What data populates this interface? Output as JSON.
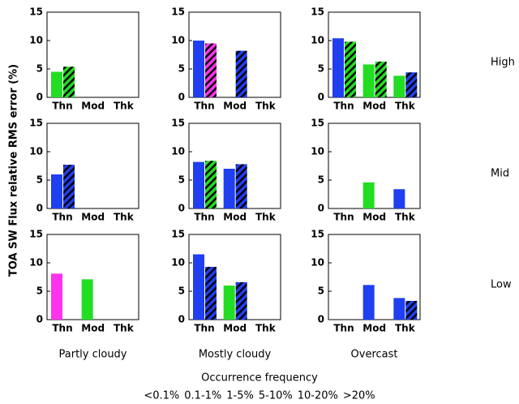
{
  "ylabel": "TOA SW Flux relative RMS error (%)",
  "row_labels": [
    "High",
    "Mid",
    "Low"
  ],
  "column_labels": [
    "Partly cloudy",
    "Mostly cloudy",
    "Overcast"
  ],
  "legend": {
    "title": "Occurrence frequency",
    "items": [
      {
        "label": "<0.1%",
        "color": "#999999"
      },
      {
        "label": "0.1-1%",
        "color": "#1f3ff0"
      },
      {
        "label": "1-5%",
        "color": "#22dd22"
      },
      {
        "label": "5-10%",
        "color": "#ff33ee"
      },
      {
        "label": "10-20%",
        "color": "#ff2020"
      },
      {
        "label": ">20%",
        "color": "#000000"
      }
    ]
  },
  "chart_data": [
    {
      "type": "bar",
      "categories": [
        "Thn",
        "Mod",
        "Thk"
      ],
      "ylim": [
        0,
        15
      ],
      "yticks": [
        0,
        5,
        10,
        15
      ],
      "series": [
        {
          "hatched": false,
          "values": [
            4.5,
            0,
            0
          ],
          "colors": [
            "#22dd22",
            "#999999",
            "#999999"
          ]
        },
        {
          "hatched": true,
          "values": [
            5.4,
            0,
            0
          ],
          "colors": [
            "#22dd22",
            "#999999",
            "#999999"
          ]
        }
      ]
    },
    {
      "type": "bar",
      "categories": [
        "Thn",
        "Mod",
        "Thk"
      ],
      "ylim": [
        0,
        15
      ],
      "yticks": [
        0,
        5,
        10,
        15
      ],
      "series": [
        {
          "hatched": false,
          "values": [
            10.0,
            0,
            0
          ],
          "colors": [
            "#1f3ff0",
            "#999999",
            "#999999"
          ]
        },
        {
          "hatched": true,
          "values": [
            9.5,
            8.2,
            0
          ],
          "colors": [
            "#ff33ee",
            "#1f3ff0",
            "#999999"
          ]
        }
      ]
    },
    {
      "type": "bar",
      "categories": [
        "Thn",
        "Mod",
        "Thk"
      ],
      "ylim": [
        0,
        15
      ],
      "yticks": [
        0,
        5,
        10,
        15
      ],
      "series": [
        {
          "hatched": false,
          "values": [
            10.4,
            5.8,
            3.8
          ],
          "colors": [
            "#1f3ff0",
            "#22dd22",
            "#22dd22"
          ]
        },
        {
          "hatched": true,
          "values": [
            9.8,
            6.3,
            4.4
          ],
          "colors": [
            "#22dd22",
            "#22dd22",
            "#1f3ff0"
          ]
        }
      ]
    },
    {
      "type": "bar",
      "categories": [
        "Thn",
        "Mod",
        "Thk"
      ],
      "ylim": [
        0,
        15
      ],
      "yticks": [
        0,
        5,
        10,
        15
      ],
      "series": [
        {
          "hatched": false,
          "values": [
            6.0,
            0,
            0
          ],
          "colors": [
            "#1f3ff0",
            "#999999",
            "#999999"
          ]
        },
        {
          "hatched": true,
          "values": [
            7.7,
            0,
            0
          ],
          "colors": [
            "#1f3ff0",
            "#999999",
            "#999999"
          ]
        }
      ]
    },
    {
      "type": "bar",
      "categories": [
        "Thn",
        "Mod",
        "Thk"
      ],
      "ylim": [
        0,
        15
      ],
      "yticks": [
        0,
        5,
        10,
        15
      ],
      "series": [
        {
          "hatched": false,
          "values": [
            8.2,
            7.0,
            0
          ],
          "colors": [
            "#1f3ff0",
            "#1f3ff0",
            "#999999"
          ]
        },
        {
          "hatched": true,
          "values": [
            8.4,
            7.8,
            0
          ],
          "colors": [
            "#22dd22",
            "#1f3ff0",
            "#999999"
          ]
        }
      ]
    },
    {
      "type": "bar",
      "categories": [
        "Thn",
        "Mod",
        "Thk"
      ],
      "ylim": [
        0,
        15
      ],
      "yticks": [
        0,
        5,
        10,
        15
      ],
      "series": [
        {
          "hatched": false,
          "values": [
            0,
            4.6,
            3.4
          ],
          "colors": [
            "#999999",
            "#22dd22",
            "#1f3ff0"
          ]
        },
        {
          "hatched": true,
          "values": [
            0,
            0,
            0
          ],
          "colors": [
            "#999999",
            "#999999",
            "#999999"
          ]
        }
      ]
    },
    {
      "type": "bar",
      "categories": [
        "Thn",
        "Mod",
        "Thk"
      ],
      "ylim": [
        0,
        15
      ],
      "yticks": [
        0,
        5,
        10,
        15
      ],
      "series": [
        {
          "hatched": false,
          "values": [
            8.1,
            7.1,
            0
          ],
          "colors": [
            "#ff33ee",
            "#22dd22",
            "#999999"
          ]
        },
        {
          "hatched": true,
          "values": [
            0,
            0,
            0
          ],
          "colors": [
            "#999999",
            "#999999",
            "#999999"
          ]
        }
      ]
    },
    {
      "type": "bar",
      "categories": [
        "Thn",
        "Mod",
        "Thk"
      ],
      "ylim": [
        0,
        15
      ],
      "yticks": [
        0,
        5,
        10,
        15
      ],
      "series": [
        {
          "hatched": false,
          "values": [
            11.5,
            6.0,
            0
          ],
          "colors": [
            "#1f3ff0",
            "#22dd22",
            "#999999"
          ]
        },
        {
          "hatched": true,
          "values": [
            9.3,
            6.6,
            0
          ],
          "colors": [
            "#1f3ff0",
            "#1f3ff0",
            "#999999"
          ]
        }
      ]
    },
    {
      "type": "bar",
      "categories": [
        "Thn",
        "Mod",
        "Thk"
      ],
      "ylim": [
        0,
        15
      ],
      "yticks": [
        0,
        5,
        10,
        15
      ],
      "series": [
        {
          "hatched": false,
          "values": [
            0,
            6.1,
            3.8
          ],
          "colors": [
            "#999999",
            "#1f3ff0",
            "#1f3ff0"
          ]
        },
        {
          "hatched": true,
          "values": [
            0,
            0,
            3.3
          ],
          "colors": [
            "#999999",
            "#999999",
            "#1f3ff0"
          ]
        }
      ]
    }
  ]
}
